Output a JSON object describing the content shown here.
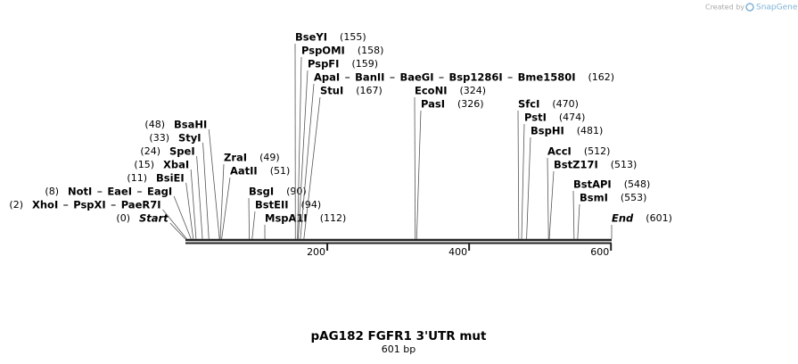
{
  "credit": "Created by",
  "brand": "SnapGene",
  "title": "pAG182 FGFR1 3'UTR mut",
  "length": "601 bp",
  "ruler": {
    "ticks": [
      200,
      400,
      600
    ]
  },
  "sites": [
    {
      "names": [
        "Start"
      ],
      "position": {
        "value": 0,
        "label": "(0)"
      },
      "side": "left",
      "italic": true
    },
    {
      "names": [
        "XhoI",
        "PspXI",
        "PaeR7I"
      ],
      "position": {
        "value": 2,
        "label": "(2)"
      },
      "side": "left"
    },
    {
      "names": [
        "NotI",
        "EaeI",
        "EagI"
      ],
      "position": {
        "value": 8,
        "label": "(8)"
      },
      "side": "left"
    },
    {
      "names": [
        "BsiEI"
      ],
      "position": {
        "value": 11,
        "label": "(11)"
      },
      "side": "left"
    },
    {
      "names": [
        "XbaI"
      ],
      "position": {
        "value": 15,
        "label": "(15)"
      },
      "side": "left"
    },
    {
      "names": [
        "SpeI"
      ],
      "position": {
        "value": 24,
        "label": "(24)"
      },
      "side": "left"
    },
    {
      "names": [
        "StyI"
      ],
      "position": {
        "value": 33,
        "label": "(33)"
      },
      "side": "left"
    },
    {
      "names": [
        "BsaHI"
      ],
      "position": {
        "value": 48,
        "label": "(48)"
      },
      "side": "left"
    },
    {
      "names": [
        "ZraI"
      ],
      "position": {
        "value": 49,
        "label": "(49)"
      },
      "side": "right"
    },
    {
      "names": [
        "AatII"
      ],
      "position": {
        "value": 51,
        "label": "(51)"
      },
      "side": "right"
    },
    {
      "names": [
        "BsgI"
      ],
      "position": {
        "value": 90,
        "label": "(90)"
      },
      "side": "right"
    },
    {
      "names": [
        "BstEII"
      ],
      "position": {
        "value": 94,
        "label": "(94)"
      },
      "side": "right"
    },
    {
      "names": [
        "MspA1I"
      ],
      "position": {
        "value": 112,
        "label": "(112)"
      },
      "side": "right"
    },
    {
      "names": [
        "BseYI"
      ],
      "position": {
        "value": 155,
        "label": "(155)"
      },
      "side": "right"
    },
    {
      "names": [
        "PspOMI"
      ],
      "position": {
        "value": 158,
        "label": "(158)"
      },
      "side": "right"
    },
    {
      "names": [
        "PspFI"
      ],
      "position": {
        "value": 159,
        "label": "(159)"
      },
      "side": "right"
    },
    {
      "names": [
        "ApaI",
        "BanII",
        "BaeGI",
        "Bsp1286I",
        "Bme1580I"
      ],
      "position": {
        "value": 162,
        "label": "(162)"
      },
      "side": "right"
    },
    {
      "names": [
        "StuI"
      ],
      "position": {
        "value": 167,
        "label": "(167)"
      },
      "side": "right"
    },
    {
      "names": [
        "EcoNI"
      ],
      "position": {
        "value": 324,
        "label": "(324)"
      },
      "side": "right"
    },
    {
      "names": [
        "PasI"
      ],
      "position": {
        "value": 326,
        "label": "(326)"
      },
      "side": "right"
    },
    {
      "names": [
        "SfcI"
      ],
      "position": {
        "value": 470,
        "label": "(470)"
      },
      "side": "right"
    },
    {
      "names": [
        "PstI"
      ],
      "position": {
        "value": 474,
        "label": "(474)"
      },
      "side": "right"
    },
    {
      "names": [
        "BspHI"
      ],
      "position": {
        "value": 481,
        "label": "(481)"
      },
      "side": "right"
    },
    {
      "names": [
        "AccI"
      ],
      "position": {
        "value": 512,
        "label": "(512)"
      },
      "side": "right"
    },
    {
      "names": [
        "BstZ17I"
      ],
      "position": {
        "value": 513,
        "label": "(513)"
      },
      "side": "right"
    },
    {
      "names": [
        "BstAPI"
      ],
      "position": {
        "value": 548,
        "label": "(548)"
      },
      "side": "right"
    },
    {
      "names": [
        "BsmI"
      ],
      "position": {
        "value": 553,
        "label": "(553)"
      },
      "side": "right"
    },
    {
      "names": [
        "End"
      ],
      "position": {
        "value": 601,
        "label": "(601)"
      },
      "side": "right",
      "italic": true
    }
  ]
}
